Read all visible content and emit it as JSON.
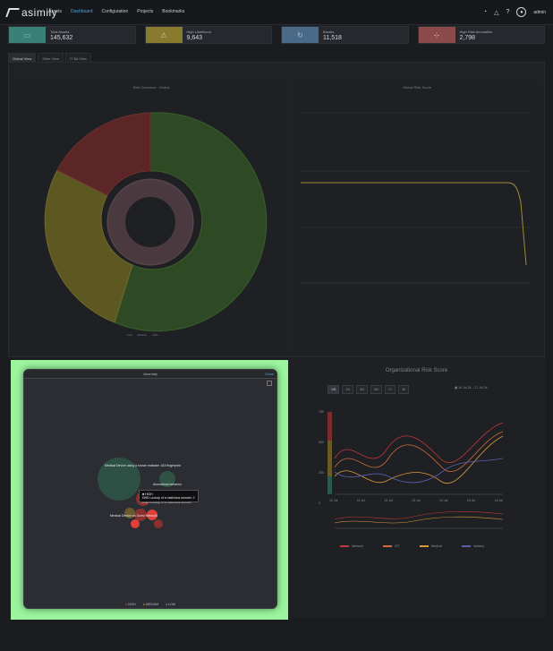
{
  "header": {
    "logo_text": "asimily",
    "nav": [
      "Assets",
      "Dashboard",
      "Configuration",
      "Projects",
      "Bookmarks"
    ],
    "active_nav": 1,
    "user": "admin"
  },
  "stats": [
    {
      "label": "Total Assets",
      "value": "145,632",
      "color": "#3a7f78",
      "icon": "server-icon"
    },
    {
      "label": "High Likelihood",
      "value": "9,643",
      "color": "#8a7a2e",
      "icon": "warning-icon"
    },
    {
      "label": "Breaks",
      "value": "11,518",
      "color": "#4b6a88",
      "icon": "refresh-icon"
    },
    {
      "label": "High Risk Anomalies",
      "value": "2,798",
      "color": "#8a4a4a",
      "icon": "network-icon"
    }
  ],
  "tabs": [
    "Global View",
    "Sites View",
    "IT Bit View"
  ],
  "panels": {
    "sunburst": {
      "title": "Risk Overview · Global",
      "legend": [
        "Low",
        "Medium",
        "High"
      ]
    },
    "line": {
      "title": "Global Risk Score"
    }
  },
  "modal": {
    "title": "Anomaly",
    "close": "Close",
    "bubbles": [
      {
        "label": "Medical Device using a known malware JA3 fingerprint",
        "level": "LOW"
      },
      {
        "label": "Anomalous behavior",
        "level": "HIGH"
      },
      {
        "label": "Medical Device on Guest Network",
        "level": "HIGH"
      },
      {
        "label": "DNS Lookup of a malicious domain",
        "level": "HIGH"
      }
    ],
    "tooltip": {
      "line1": "■ HIGH",
      "line2": "DNS Lookup of a malicious domain: 2"
    },
    "legend": [
      "HIGH",
      "MEDIUM",
      "LOW"
    ],
    "colors": {
      "high": "#e0403a",
      "medium": "#e7a13b",
      "low": "#5ac18e"
    }
  },
  "org_risk": {
    "title": "Organizational Risk Score",
    "ranges": [
      "1W",
      "1M",
      "3M",
      "6M",
      "1Y",
      "All"
    ],
    "active_range": 0,
    "date_range": "10 Jul 24 – 17 Jul 24",
    "x_labels": [
      "10 Jul",
      "11 Jul",
      "12 Jul",
      "13 Jul",
      "14 Jul",
      "15 Jul",
      "16 Jul"
    ],
    "y_labels": [
      "0",
      "250",
      "500",
      "750"
    ],
    "bands": [
      "High",
      "Medium",
      "Low"
    ],
    "legend": [
      {
        "name": "Network",
        "color": "#c0383d"
      },
      {
        "name": "IOT",
        "color": "#d06a3a"
      },
      {
        "name": "Medical",
        "color": "#d89a3a"
      },
      {
        "name": "Industry",
        "color": "#5a5fb0"
      }
    ]
  }
}
